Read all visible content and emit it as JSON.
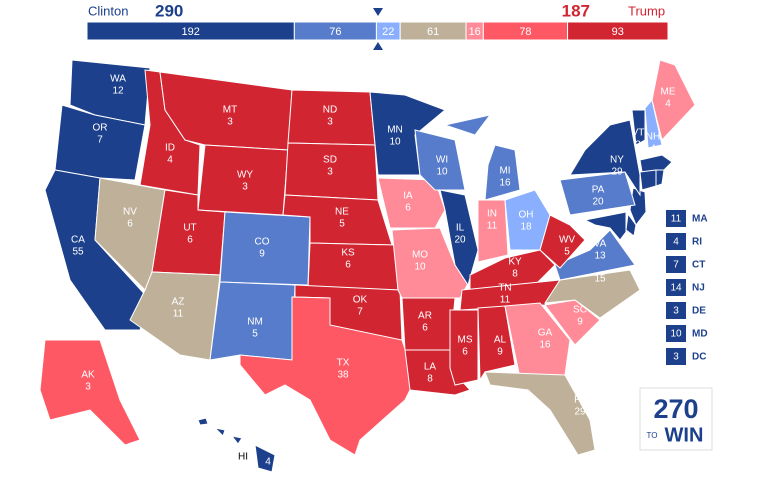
{
  "header": {
    "clinton": {
      "name": "Clinton",
      "votes": 290,
      "color": "#1c408c"
    },
    "trump": {
      "name": "Trump",
      "votes": 187,
      "color": "#d22532"
    }
  },
  "bar": [
    {
      "value": 192,
      "color": "#1c408c"
    },
    {
      "value": 76,
      "color": "#577ccc"
    },
    {
      "value": 22,
      "color": "#8aafff"
    },
    {
      "value": 61,
      "color": "#bfb199"
    },
    {
      "value": 16,
      "color": "#ff8b98"
    },
    {
      "value": 78,
      "color": "#ff5865"
    },
    {
      "value": 93,
      "color": "#d22532"
    }
  ],
  "states": [
    {
      "abbr": "WA",
      "votes": 12,
      "color": "#1c408c"
    },
    {
      "abbr": "OR",
      "votes": 7,
      "color": "#1c408c"
    },
    {
      "abbr": "CA",
      "votes": 55,
      "color": "#1c408c"
    },
    {
      "abbr": "NV",
      "votes": 6,
      "color": "#bfb199"
    },
    {
      "abbr": "ID",
      "votes": 4,
      "color": "#d22532"
    },
    {
      "abbr": "MT",
      "votes": 3,
      "color": "#d22532"
    },
    {
      "abbr": "WY",
      "votes": 3,
      "color": "#d22532"
    },
    {
      "abbr": "UT",
      "votes": 6,
      "color": "#d22532"
    },
    {
      "abbr": "AZ",
      "votes": 11,
      "color": "#bfb199"
    },
    {
      "abbr": "CO",
      "votes": 9,
      "color": "#577ccc"
    },
    {
      "abbr": "NM",
      "votes": 5,
      "color": "#577ccc"
    },
    {
      "abbr": "ND",
      "votes": 3,
      "color": "#d22532"
    },
    {
      "abbr": "SD",
      "votes": 3,
      "color": "#d22532"
    },
    {
      "abbr": "NE",
      "votes": 5,
      "color": "#d22532"
    },
    {
      "abbr": "KS",
      "votes": 6,
      "color": "#d22532"
    },
    {
      "abbr": "OK",
      "votes": 7,
      "color": "#d22532"
    },
    {
      "abbr": "TX",
      "votes": 38,
      "color": "#ff5865"
    },
    {
      "abbr": "MN",
      "votes": 10,
      "color": "#1c408c"
    },
    {
      "abbr": "IA",
      "votes": 6,
      "color": "#ff8b98"
    },
    {
      "abbr": "MO",
      "votes": 10,
      "color": "#ff8b98"
    },
    {
      "abbr": "AR",
      "votes": 6,
      "color": "#d22532"
    },
    {
      "abbr": "LA",
      "votes": 8,
      "color": "#d22532"
    },
    {
      "abbr": "WI",
      "votes": 10,
      "color": "#577ccc"
    },
    {
      "abbr": "IL",
      "votes": 20,
      "color": "#1c408c"
    },
    {
      "abbr": "MI",
      "votes": 16,
      "color": "#577ccc"
    },
    {
      "abbr": "IN",
      "votes": 11,
      "color": "#ff8b98"
    },
    {
      "abbr": "OH",
      "votes": 18,
      "color": "#8aafff"
    },
    {
      "abbr": "KY",
      "votes": 8,
      "color": "#d22532"
    },
    {
      "abbr": "TN",
      "votes": 11,
      "color": "#d22532"
    },
    {
      "abbr": "MS",
      "votes": 6,
      "color": "#d22532"
    },
    {
      "abbr": "AL",
      "votes": 9,
      "color": "#d22532"
    },
    {
      "abbr": "GA",
      "votes": 16,
      "color": "#ff8b98"
    },
    {
      "abbr": "FL",
      "votes": 29,
      "color": "#bfb199"
    },
    {
      "abbr": "SC",
      "votes": 9,
      "color": "#ff8b98"
    },
    {
      "abbr": "NC",
      "votes": 15,
      "color": "#bfb199"
    },
    {
      "abbr": "VA",
      "votes": 13,
      "color": "#577ccc"
    },
    {
      "abbr": "WV",
      "votes": 5,
      "color": "#d22532"
    },
    {
      "abbr": "PA",
      "votes": 20,
      "color": "#577ccc"
    },
    {
      "abbr": "NY",
      "votes": 29,
      "color": "#1c408c"
    },
    {
      "abbr": "VT",
      "votes": 3,
      "color": "#1c408c"
    },
    {
      "abbr": "NH",
      "votes": 4,
      "color": "#8aafff"
    },
    {
      "abbr": "ME",
      "votes": 4,
      "color": "#ff8b98"
    },
    {
      "abbr": "AK",
      "votes": 3,
      "color": "#ff5865"
    },
    {
      "abbr": "HI",
      "votes": 4,
      "color": "#1c408c"
    }
  ],
  "small_states": [
    {
      "abbr": "MA",
      "votes": 11
    },
    {
      "abbr": "RI",
      "votes": 4
    },
    {
      "abbr": "CT",
      "votes": 7
    },
    {
      "abbr": "NJ",
      "votes": 14
    },
    {
      "abbr": "DE",
      "votes": 3
    },
    {
      "abbr": "MD",
      "votes": 10
    },
    {
      "abbr": "DC",
      "votes": 3
    }
  ],
  "logo": {
    "number": "270",
    "to": "TO",
    "win": "WIN"
  }
}
